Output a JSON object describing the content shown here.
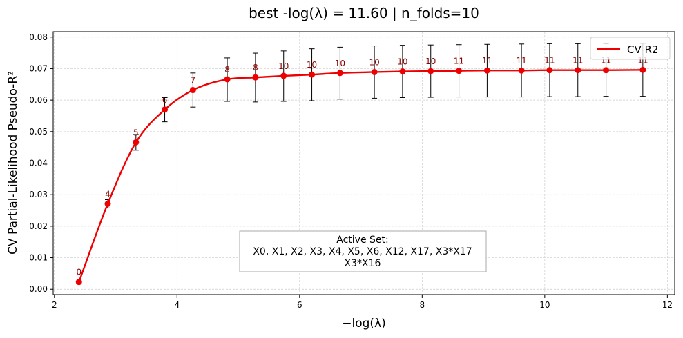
{
  "chart_data": {
    "type": "line",
    "title": "best -log(λ) = 11.60 | n_folds=10",
    "xlabel": "−log(λ)",
    "ylabel": "CV Partial-Likelihood Pseudo-R²",
    "xlim": [
      1.98,
      12.12
    ],
    "ylim": [
      -0.0017,
      0.0817
    ],
    "x_ticks": [
      2,
      4,
      6,
      8,
      10,
      12
    ],
    "y_ticks": [
      0.0,
      0.01,
      0.02,
      0.03,
      0.04,
      0.05,
      0.06,
      0.07,
      0.08
    ],
    "x_tick_labels": [
      "2",
      "4",
      "6",
      "8",
      "10",
      "12"
    ],
    "y_tick_labels": [
      "0.00",
      "0.01",
      "0.02",
      "0.03",
      "0.04",
      "0.05",
      "0.06",
      "0.07",
      "0.08"
    ],
    "grid": true,
    "legend": {
      "position": "top-right",
      "entries": [
        "CV R2"
      ]
    },
    "series": [
      {
        "name": "CV R2",
        "color": "#ee0000",
        "x": [
          2.4,
          2.87,
          3.33,
          3.8,
          4.26,
          4.82,
          5.28,
          5.74,
          6.2,
          6.66,
          7.22,
          7.68,
          8.14,
          8.6,
          9.06,
          9.62,
          10.08,
          10.54,
          11.0,
          11.6
        ],
        "y": [
          0.0023,
          0.0271,
          0.0466,
          0.057,
          0.0632,
          0.0666,
          0.0672,
          0.0677,
          0.0681,
          0.0686,
          0.0689,
          0.0691,
          0.0692,
          0.0693,
          0.0694,
          0.0694,
          0.0695,
          0.0695,
          0.0695,
          0.0696
        ],
        "err_low": [
          0.0023,
          0.0258,
          0.0441,
          0.0531,
          0.0578,
          0.0596,
          0.0594,
          0.0596,
          0.0598,
          0.0603,
          0.0606,
          0.0608,
          0.0609,
          0.061,
          0.061,
          0.061,
          0.0611,
          0.0611,
          0.0612,
          0.0612
        ],
        "err_high": [
          0.0023,
          0.0284,
          0.0491,
          0.0608,
          0.0686,
          0.0734,
          0.0749,
          0.0756,
          0.0763,
          0.0768,
          0.0772,
          0.0774,
          0.0775,
          0.0776,
          0.0777,
          0.0778,
          0.0779,
          0.0779,
          0.0779,
          0.078
        ],
        "labels": [
          "0",
          "4",
          "5",
          "6",
          "7",
          "8",
          "8",
          "10",
          "10",
          "10",
          "10",
          "10",
          "10",
          "11",
          "11",
          "11",
          "11",
          "11",
          "11",
          "11"
        ]
      }
    ],
    "annotation": {
      "title": "Active Set:",
      "line1": "X0, X1, X2, X3, X4, X5, X6, X12, X17, X3*X17",
      "line2": "X3*X16"
    }
  }
}
